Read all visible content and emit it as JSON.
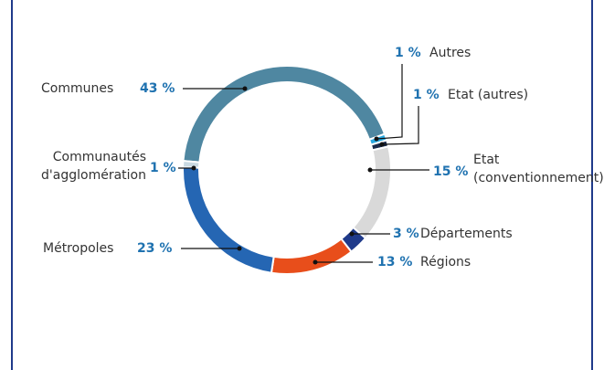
{
  "chart_data": {
    "type": "donut",
    "categories": [
      "Communes",
      "Autres",
      "Etat (autres)",
      "Etat (conventionnement)",
      "Départements",
      "Régions",
      "Métropoles",
      "Communautés d'agglomération"
    ],
    "values": [
      43,
      1,
      1,
      15,
      3,
      13,
      23,
      1
    ],
    "value_labels": [
      "43 %",
      "1 %",
      "1 %",
      "15 %",
      "3 %",
      "13 %",
      "23 %",
      "1 %"
    ],
    "colors": [
      "#4f87a1",
      "#29a8e0",
      "#1b2a4a",
      "#d9d9d9",
      "#1f3a8a",
      "#e84e1b",
      "#2566b3",
      "#c9d9e2"
    ]
  }
}
